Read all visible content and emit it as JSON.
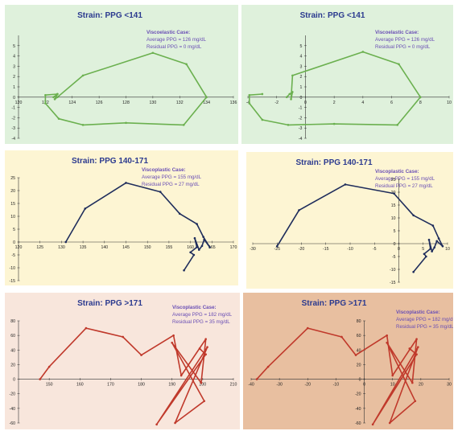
{
  "colors": {
    "background": "#ffffff",
    "title": "#2b3a8f",
    "annotation": "#6a4fb5",
    "axis": "#333333",
    "tick_label": "#222222"
  },
  "chart_data": [
    {
      "type": "line",
      "title": "Strain:  PPG  <141",
      "annotation": [
        "Viscoelastic Case:",
        "Average PPG = 126 mg/dL",
        "Residual PPG = 0 mg/dL"
      ],
      "panel_background": "#dff1dc",
      "line_color": "#6bb04f",
      "xlim": [
        120,
        136
      ],
      "ylim": [
        -4,
        6
      ],
      "x_ticks": [
        120,
        122,
        124,
        126,
        128,
        130,
        132,
        134,
        136
      ],
      "y_ticks": [
        -4,
        -3,
        -2,
        -1,
        0,
        1,
        2,
        3,
        4,
        5
      ],
      "xlabel": "",
      "ylabel": "",
      "series": [
        {
          "x": [
            122.6,
            122.9,
            122.7,
            122.9,
            124.8,
            130.0,
            132.5,
            134.0,
            132.3,
            128.0,
            124.8,
            123.0,
            122.0,
            122.0,
            122.9
          ],
          "y": [
            0.0,
            0.3,
            -0.2,
            0.0,
            2.1,
            4.3,
            3.2,
            0.0,
            -2.7,
            -2.5,
            -2.7,
            -2.1,
            -0.6,
            0.2,
            0.3
          ]
        }
      ]
    },
    {
      "type": "line",
      "title": "Strain:  PPG  <141",
      "annotation": [
        "Viscoelastic Case:",
        "Average PPG = 126 mg/dL",
        "Residual PPG = 0 mg/dL"
      ],
      "panel_background": "#dff1dc",
      "line_color": "#6bb04f",
      "xlim": [
        -4,
        10
      ],
      "ylim": [
        -4,
        6
      ],
      "x_ticks": [
        -4,
        -2,
        0,
        2,
        4,
        6,
        8,
        10
      ],
      "y_ticks": [
        -4,
        -3,
        -2,
        -1,
        0,
        1,
        2,
        3,
        4,
        5
      ],
      "xlabel": "",
      "ylabel": "",
      "series": [
        {
          "x": [
            -1.3,
            -1.1,
            -0.9,
            -1.0,
            -0.9,
            4.0,
            6.5,
            8.0,
            6.4,
            2.0,
            -1.2,
            -3.0,
            -3.9,
            -3.9,
            -3.0
          ],
          "y": [
            0.0,
            0.3,
            0.5,
            -0.2,
            2.1,
            4.4,
            3.2,
            0.0,
            -2.7,
            -2.6,
            -2.7,
            -2.2,
            -0.6,
            0.2,
            0.3
          ]
        }
      ]
    },
    {
      "type": "line",
      "title": "Strain:  PPG 140-171",
      "annotation": [
        "Viscoplastic Case:",
        "Average PPG = 155 mg/dL",
        "Residual PPG = 27 mg/dL"
      ],
      "panel_background": "#fdf5d3",
      "line_color": "#1f2d5c",
      "xlim": [
        120,
        170
      ],
      "ylim": [
        -15,
        25
      ],
      "x_ticks": [
        120,
        125,
        130,
        135,
        140,
        145,
        150,
        155,
        160,
        165,
        170
      ],
      "y_ticks": [
        -15,
        -10,
        -5,
        0,
        5,
        10,
        15,
        20,
        25
      ],
      "xlabel": "",
      "ylabel": "",
      "series": [
        {
          "x": [
            131.0,
            135.5,
            145.0,
            153.0,
            157.5,
            161.5,
            163.0,
            164.5,
            163.2,
            162.7,
            162.0,
            161.0,
            161.5,
            160.0,
            160.8,
            158.5
          ],
          "y": [
            0.0,
            13.0,
            23.0,
            19.5,
            11.0,
            7.0,
            2.0,
            -2.0,
            1.0,
            -1.5,
            -3.0,
            1.5,
            -2.0,
            -4.0,
            -5.0,
            -11.0
          ]
        }
      ]
    },
    {
      "type": "line",
      "title": "Strain:  PPG 140-171",
      "annotation": [
        "Viscoplastic Case:",
        "Average PPG = 155 mg/dL",
        "Residual PPG = 27 mg/dL"
      ],
      "panel_background": "#fdf5d3",
      "line_color": "#1f2d5c",
      "xlim": [
        -30,
        10
      ],
      "ylim": [
        -15,
        25
      ],
      "x_ticks": [
        -30,
        -25,
        -20,
        -15,
        -10,
        -5,
        0,
        5,
        10
      ],
      "y_ticks": [
        -15,
        -10,
        -5,
        0,
        5,
        10,
        15,
        20,
        25
      ],
      "xlabel": "",
      "ylabel": "",
      "series": [
        {
          "x": [
            -25.0,
            -20.5,
            -11.0,
            -1.0,
            3.0,
            7.0,
            8.2,
            9.0,
            7.8,
            7.3,
            6.8,
            6.2,
            6.5,
            5.2,
            5.6,
            3.0
          ],
          "y": [
            -1.0,
            13.0,
            23.0,
            19.5,
            11.0,
            7.0,
            2.0,
            -1.0,
            1.0,
            -1.5,
            -3.0,
            1.5,
            -2.0,
            -4.0,
            -5.0,
            -11.0
          ]
        }
      ]
    },
    {
      "type": "line",
      "title": "Strain:  PPG >171",
      "annotation": [
        "Viscoplastic Case:",
        "Average PPG = 182 mg/dL",
        "Residual PPG = 35 mg/dL"
      ],
      "panel_background": "#f8e6dc",
      "line_color": "#c0392b",
      "xlim": [
        140,
        210
      ],
      "ylim": [
        -60,
        80
      ],
      "x_ticks": [
        150,
        160,
        170,
        180,
        190,
        200,
        210
      ],
      "y_ticks": [
        -60,
        -40,
        -20,
        0,
        20,
        40,
        60,
        80
      ],
      "xlabel": "",
      "ylabel": "",
      "series": [
        {
          "x": [
            147.0,
            150.0,
            162.0,
            174.0,
            180.0,
            190.5,
            193.0,
            201.0,
            199.5,
            190.0,
            200.5,
            191.0,
            201.5,
            185.0,
            201.0,
            199.0
          ],
          "y": [
            0.0,
            17.0,
            70.0,
            58.0,
            33.0,
            60.0,
            5.0,
            55.0,
            -5.0,
            50.0,
            -30.0,
            -60.0,
            44.0,
            -62.0,
            34.0,
            42.0
          ]
        }
      ]
    },
    {
      "type": "line",
      "title": "Strain:  PPG >171",
      "annotation": [
        "Viscoplastic Case:",
        "Average PPG = 182 mg/dL",
        "Residual PPG = 35 mg/dL"
      ],
      "panel_background": "#e8bfa0",
      "line_color": "#c0392b",
      "xlim": [
        -40,
        30
      ],
      "ylim": [
        -60,
        80
      ],
      "x_ticks": [
        -40,
        -30,
        -20,
        -10,
        0,
        10,
        20,
        30
      ],
      "y_ticks": [
        -60,
        -40,
        -20,
        0,
        20,
        40,
        60,
        80
      ],
      "xlabel": "",
      "ylabel": "",
      "series": [
        {
          "x": [
            -38.0,
            -34.0,
            -20.0,
            -8.0,
            -3.0,
            8.0,
            10.0,
            18.5,
            17.0,
            8.0,
            18.0,
            9.0,
            19.0,
            3.0,
            18.5,
            16.0
          ],
          "y": [
            0.0,
            17.0,
            70.0,
            58.0,
            33.0,
            60.0,
            5.0,
            55.0,
            -5.0,
            50.0,
            -30.0,
            -60.0,
            44.0,
            -62.0,
            34.0,
            42.0
          ]
        }
      ]
    }
  ]
}
